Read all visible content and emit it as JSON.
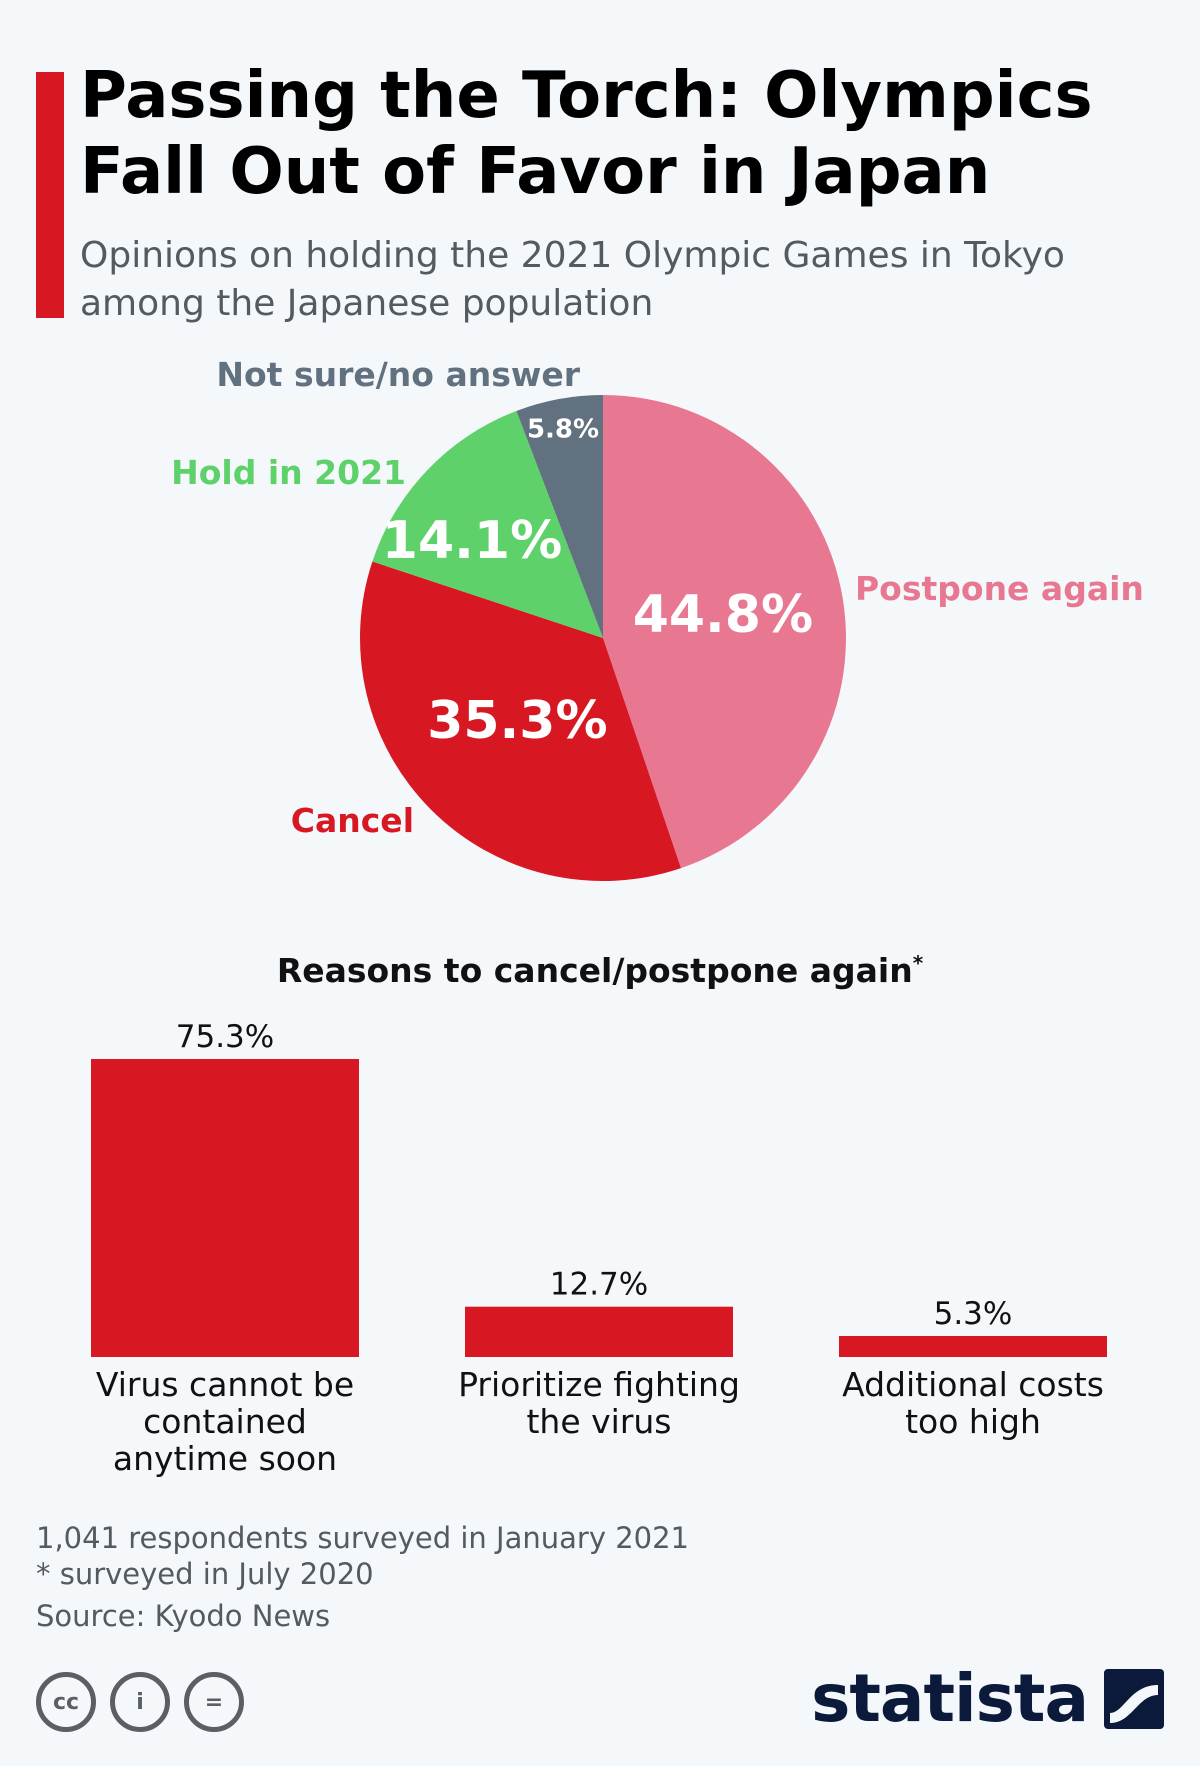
{
  "header": {
    "title": "Passing the Torch: Olympics Fall Out of Favor in Japan",
    "subtitle": "Opinions on holding the 2021 Olympic Games in Tokyo among the Japanese population"
  },
  "colors": {
    "accent": "#d71823",
    "postpone": "#e87891",
    "cancel": "#d71823",
    "hold": "#5fd16b",
    "notsure": "#62717f"
  },
  "chart_data": [
    {
      "type": "pie",
      "slices": [
        {
          "label": "Postpone again",
          "value": 44.8,
          "value_label": "44.8%",
          "color": "#e87891"
        },
        {
          "label": "Cancel",
          "value": 35.3,
          "value_label": "35.3%",
          "color": "#d71823"
        },
        {
          "label": "Hold in 2021",
          "value": 14.1,
          "value_label": "14.1%",
          "color": "#5fd16b"
        },
        {
          "label": "Not sure/no answer",
          "value": 5.8,
          "value_label": "5.8%",
          "color": "#62717f"
        }
      ]
    },
    {
      "type": "bar",
      "title": "Reasons to cancel/postpone again",
      "title_marker": "*",
      "categories": [
        [
          "Virus cannot be",
          "contained",
          "anytime soon"
        ],
        [
          "Prioritize fighting",
          "the virus"
        ],
        [
          "Additional costs",
          "too high"
        ]
      ],
      "values": [
        75.3,
        12.7,
        5.3
      ],
      "value_labels": [
        "75.3%",
        "12.7%",
        "5.3%"
      ],
      "color": "#d71823"
    }
  ],
  "footer": {
    "note1": "1,041 respondents surveyed in January 2021",
    "note2": "* surveyed in July 2020",
    "source": "Source: Kyodo News",
    "logo_text": "statista",
    "cc_labels": [
      "cc",
      "i",
      "="
    ]
  }
}
